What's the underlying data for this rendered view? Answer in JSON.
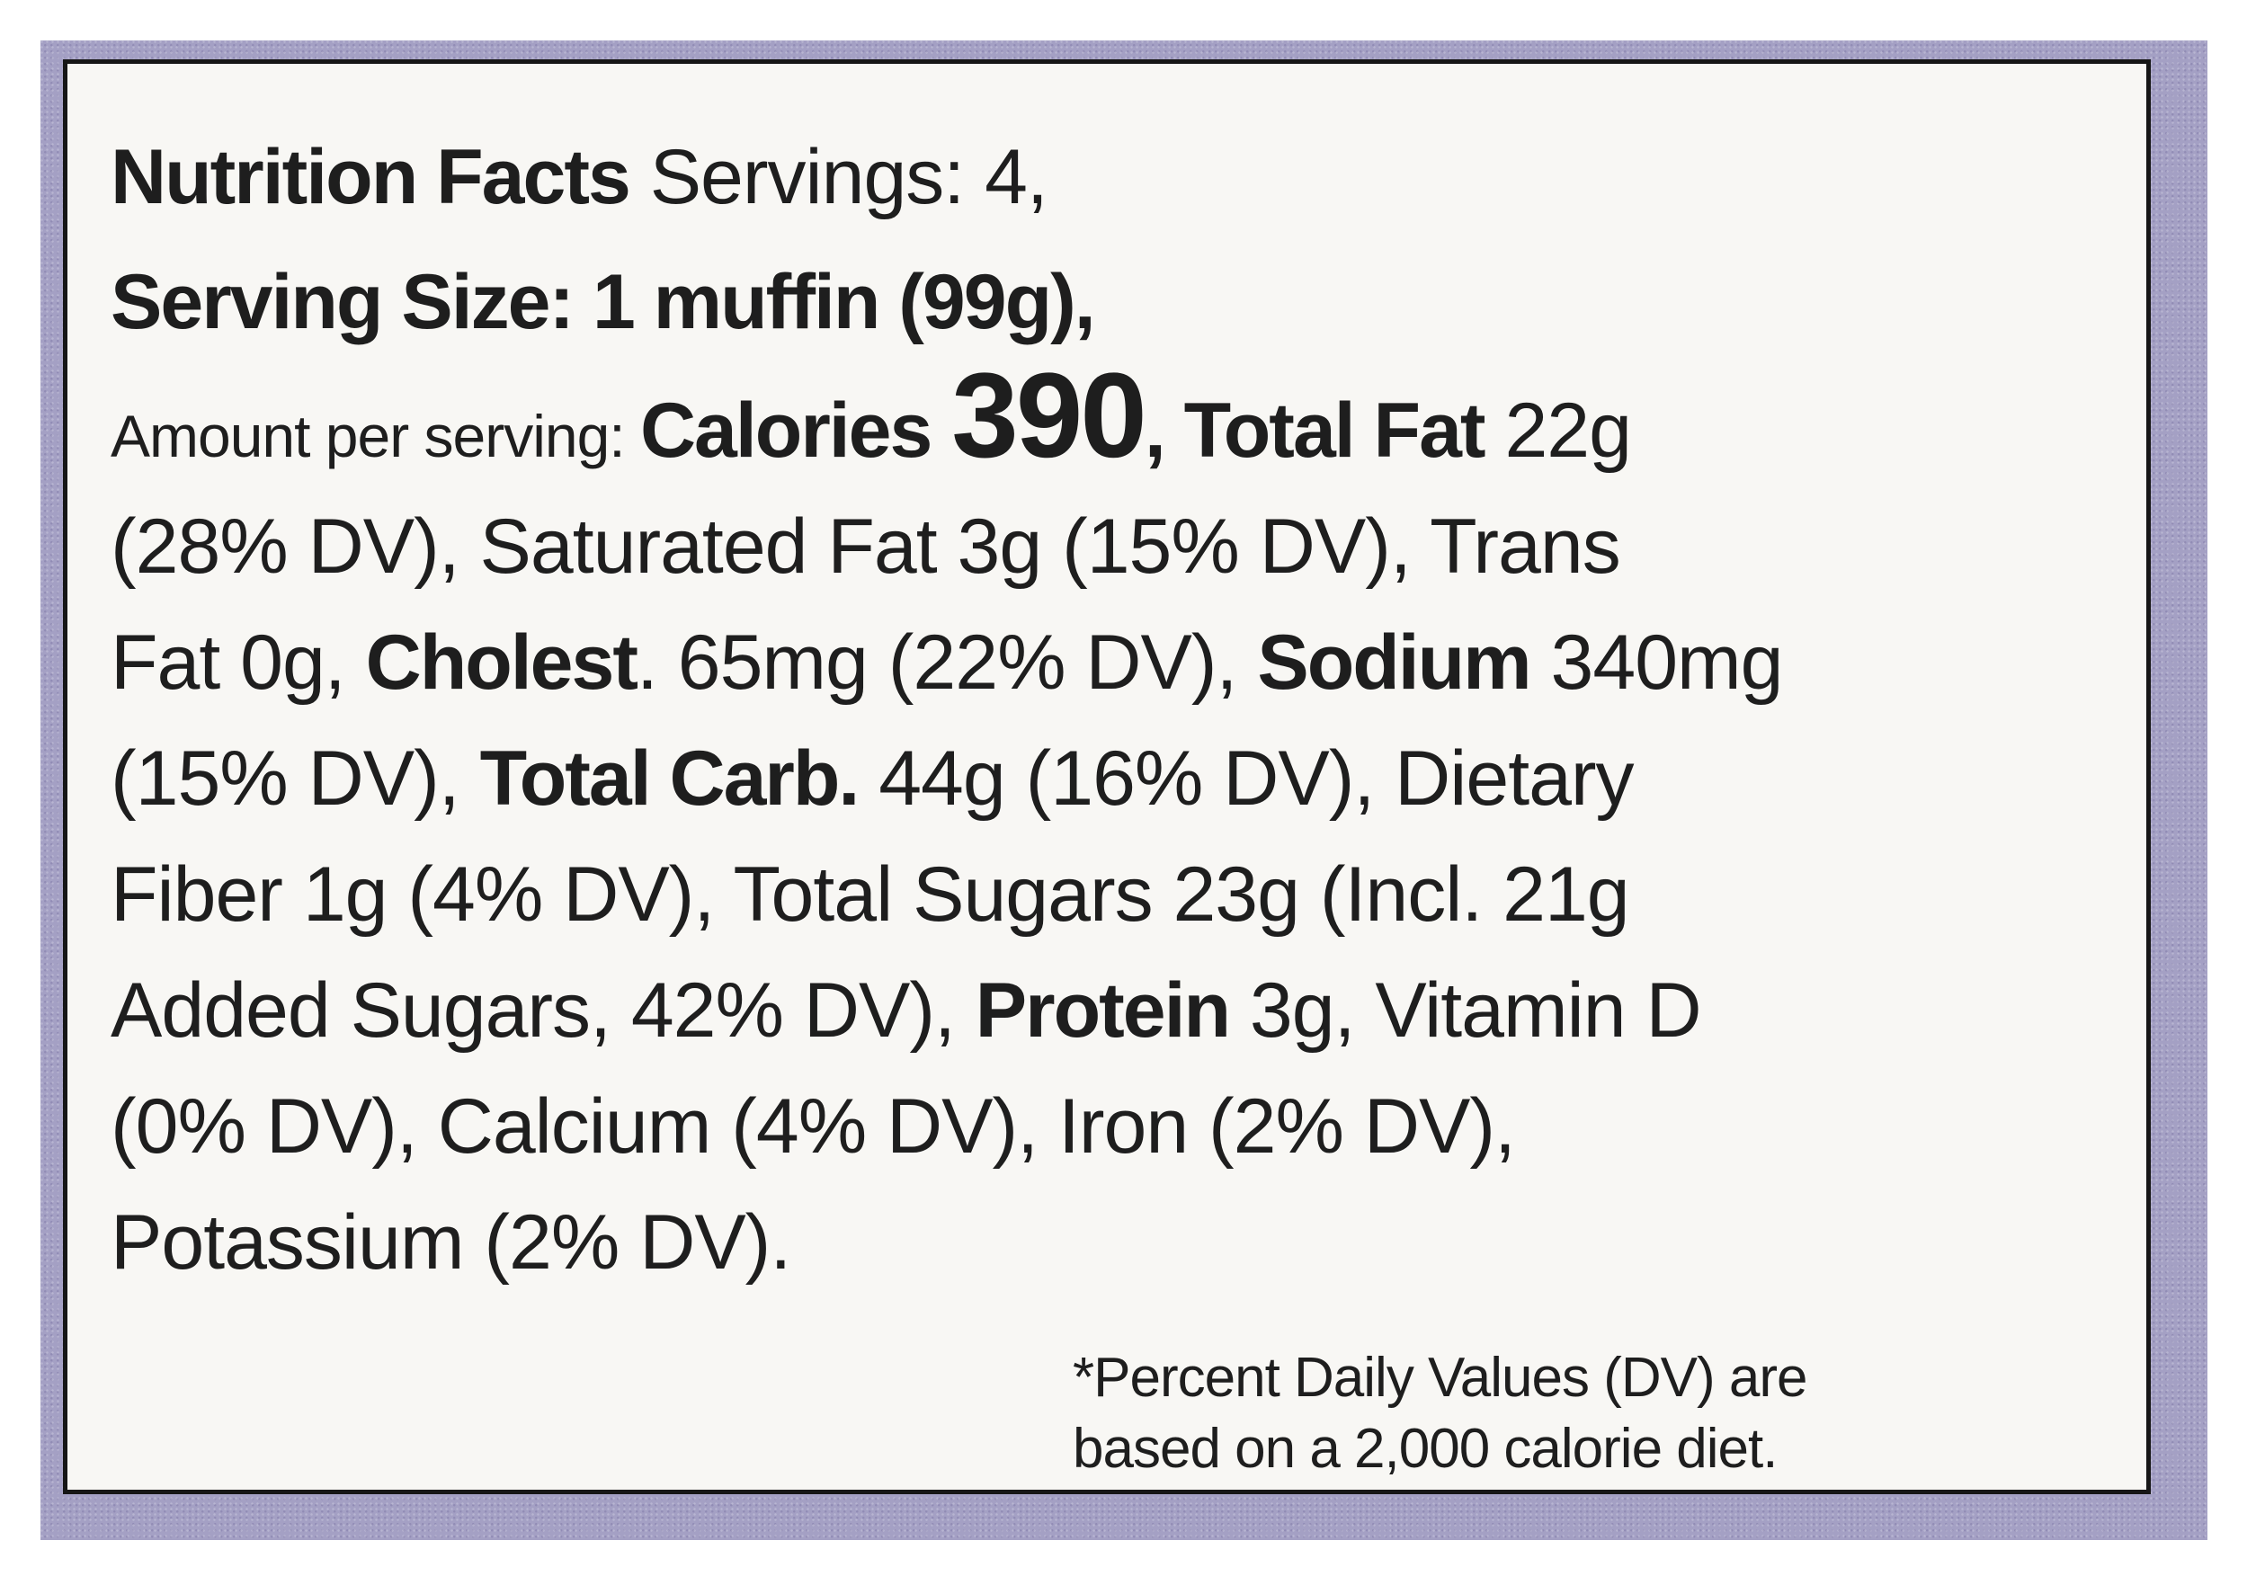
{
  "colors": {
    "package_background": "#a4a0c4",
    "panel_background": "#f8f7f4",
    "text": "#1e1e1e",
    "border": "#161616"
  },
  "label": {
    "line1": {
      "heading": "Nutrition Facts",
      "servings": " Servings: 4,"
    },
    "line2": {
      "serving_size": "Serving Size: 1 muffin (99g),"
    },
    "line3": {
      "amount_per_serving": "Amount per serving: ",
      "calories_label": "Calories",
      "calories_value": "390",
      "after_calories": ", ",
      "total_fat_label": "Total Fat",
      "total_fat_value": " 22g"
    },
    "line4": {
      "text": "(28% DV), Saturated Fat 3g (15% DV), Trans"
    },
    "line5": {
      "pre": "Fat 0g, ",
      "cholest_label": "Cholest",
      "cholest_value": ". 65mg (22% DV), ",
      "sodium_label": "Sodium",
      "sodium_value": " 340mg"
    },
    "line6": {
      "pre": "(15% DV), ",
      "carb_label": "Total Carb.",
      "carb_value": " 44g (16% DV), Dietary"
    },
    "line7": {
      "text": "Fiber 1g (4% DV), Total Sugars 23g (Incl. 21g"
    },
    "line8": {
      "pre": "Added Sugars, 42% DV), ",
      "protein_label": "Protein",
      "protein_value": " 3g, Vitamin D"
    },
    "line9": {
      "text": "(0% DV), Calcium (4% DV), Iron (2% DV),"
    },
    "line10": {
      "text": "Potassium (2% DV)."
    },
    "footnote": {
      "line1": "*Percent Daily Values (DV) are",
      "line2": "based on a 2,000 calorie diet."
    }
  }
}
